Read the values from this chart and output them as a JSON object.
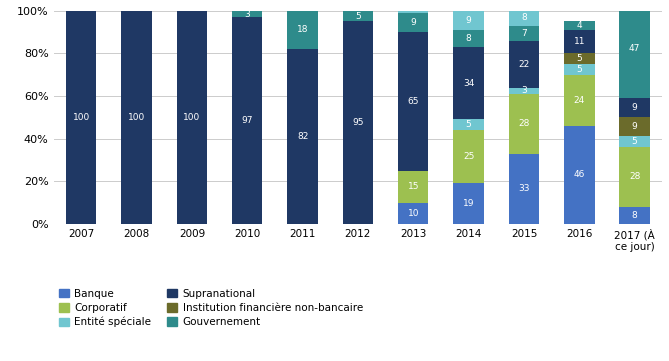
{
  "years": [
    "2007",
    "2008",
    "2009",
    "2010",
    "2011",
    "2012",
    "2013",
    "2014",
    "2015",
    "2016",
    "2017 (À\nce jour)"
  ],
  "segments": {
    "Banque": [
      0,
      0,
      0,
      0,
      0,
      0,
      10,
      19,
      33,
      46,
      8
    ],
    "Corporatif": [
      0,
      0,
      0,
      0,
      0,
      0,
      15,
      25,
      28,
      24,
      28
    ],
    "Enté spéciale": [
      0,
      0,
      0,
      0,
      0,
      0,
      0,
      5,
      3,
      5,
      5
    ],
    "Institution financière non-bancaire": [
      0,
      0,
      0,
      0,
      0,
      0,
      0,
      0,
      0,
      5,
      9
    ],
    "Supranational": [
      100,
      100,
      100,
      97,
      82,
      95,
      65,
      34,
      22,
      11,
      9
    ],
    "Gouvernement": [
      0,
      0,
      0,
      3,
      18,
      5,
      9,
      8,
      7,
      4,
      47
    ],
    "Entité spéciale2": [
      0,
      0,
      0,
      0,
      0,
      0,
      1,
      9,
      8,
      0,
      0
    ]
  },
  "colors": {
    "Banque": "#4472C4",
    "Corporatif": "#9DC050",
    "Enté spéciale": "#70C6D0",
    "Institution financière non-bancaire": "#6B6B2B",
    "Supranational": "#1F3864",
    "Gouvernement": "#2E8B8B",
    "Entité spéciale2": "#70C6D0"
  },
  "bar_labels": {
    "Banque": [
      null,
      null,
      null,
      null,
      null,
      null,
      10,
      19,
      33,
      46,
      8
    ],
    "Corporatif": [
      null,
      null,
      null,
      null,
      null,
      null,
      15,
      25,
      28,
      24,
      28
    ],
    "Enté spéciale": [
      null,
      null,
      null,
      null,
      null,
      null,
      null,
      5,
      3,
      5,
      5
    ],
    "Institution financière non-bancaire": [
      null,
      null,
      null,
      null,
      null,
      null,
      null,
      null,
      null,
      5,
      9
    ],
    "Supranational": [
      100,
      100,
      100,
      97,
      82,
      95,
      65,
      34,
      22,
      11,
      9
    ],
    "Gouvernement": [
      null,
      null,
      null,
      3,
      18,
      5,
      9,
      8,
      7,
      4,
      47
    ],
    "Entité spéciale2": [
      null,
      null,
      null,
      null,
      null,
      null,
      null,
      9,
      8,
      null,
      null
    ]
  },
  "legend_items": [
    {
      "label": "Banque",
      "color": "#4472C4"
    },
    {
      "label": "Corporatif",
      "color": "#9DC050"
    },
    {
      "label": "Entité spéciale",
      "color": "#70C6D0"
    },
    {
      "label": "Supranational",
      "color": "#1F3864"
    },
    {
      "label": "Institution financière non-bancaire",
      "color": "#6B6B2B"
    },
    {
      "label": "Gouvernement",
      "color": "#2E8B8B"
    }
  ],
  "ylim": [
    0,
    100
  ],
  "yticks": [
    0,
    20,
    40,
    60,
    80,
    100
  ],
  "ytick_labels": [
    "0%",
    "20%",
    "40%",
    "60%",
    "80%",
    "100%"
  ],
  "background_color": "#FFFFFF",
  "grid_color": "#CCCCCC"
}
